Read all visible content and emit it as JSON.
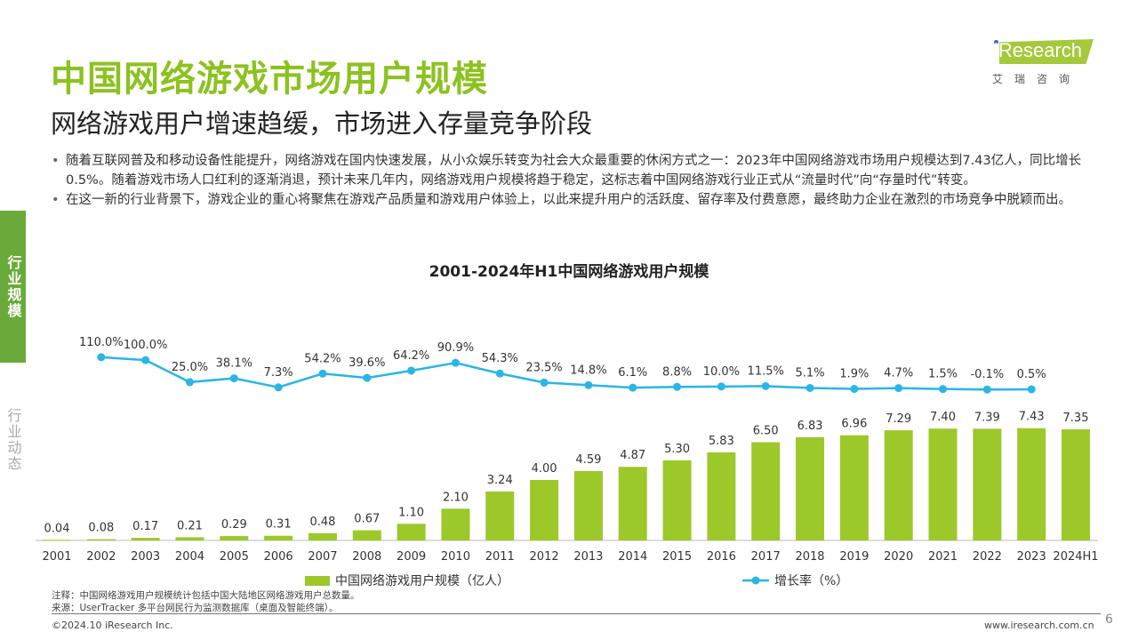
{
  "header": {
    "title": "中国网络游戏市场用户规模",
    "subtitle": "网络游戏用户增速趋缓，市场进入存量竞争阶段"
  },
  "logo": {
    "text": "iResearch",
    "cn": "艾瑞咨询"
  },
  "sidebar": {
    "items": [
      {
        "label": "行业规模",
        "active": true
      },
      {
        "label": "行业动态",
        "active": false
      }
    ]
  },
  "bullets": [
    "随着互联网普及和移动设备性能提升，网络游戏在国内快速发展，从小众娱乐转变为社会大众最重要的休闲方式之一：2023年中国网络游戏市场用户规模达到7.43亿人，同比增长0.5%。随着游戏市场人口红利的逐渐消退，预计未来几年内，网络游戏用户规模将趋于稳定，这标志着中国网络游戏行业正式从“流量时代”向“存量时代”转变。",
    "在这一新的行业背景下，游戏企业的重心将聚焦在游戏产品质量和游戏用户体验上，以此来提升用户的活跃度、留存率及付费意愿，最终助力企业在激烈的市场竞争中脱颖而出。"
  ],
  "chart_data": {
    "type": "bar+line",
    "title": "2001-2024年H1中国网络游戏用户规模",
    "categories": [
      "2001",
      "2002",
      "2003",
      "2004",
      "2005",
      "2006",
      "2007",
      "2008",
      "2009",
      "2010",
      "2011",
      "2012",
      "2013",
      "2014",
      "2015",
      "2016",
      "2017",
      "2018",
      "2019",
      "2020",
      "2021",
      "2022",
      "2023",
      "2024H1"
    ],
    "series": [
      {
        "name": "中国网络游戏用户规模（亿人）",
        "type": "bar",
        "color": "#9cc82a",
        "values": [
          0.04,
          0.08,
          0.17,
          0.21,
          0.29,
          0.31,
          0.48,
          0.67,
          1.1,
          2.1,
          3.24,
          4.0,
          4.59,
          4.87,
          5.3,
          5.83,
          6.5,
          6.83,
          6.96,
          7.29,
          7.4,
          7.39,
          7.43,
          7.35
        ]
      },
      {
        "name": "增长率（%）",
        "type": "line",
        "color": "#29b6e6",
        "values": [
          null,
          110.0,
          100.0,
          25.0,
          38.1,
          7.3,
          54.2,
          39.6,
          64.2,
          90.9,
          54.3,
          23.5,
          14.8,
          6.1,
          8.8,
          10.0,
          11.5,
          5.1,
          1.9,
          4.7,
          1.5,
          -0.1,
          0.5,
          null
        ]
      }
    ],
    "legend": "bottom"
  },
  "notes": {
    "note": "注释：中国网络游戏用户规模统计包括中国大陆地区网络游戏用户总数量。",
    "source": "来源：UserTracker 多平台网民行为监测数据库（桌面及智能终端）。"
  },
  "footer": {
    "copyright": "©2024.10 iResearch Inc.",
    "url": "www.iresearch.com.cn",
    "page": "6"
  }
}
